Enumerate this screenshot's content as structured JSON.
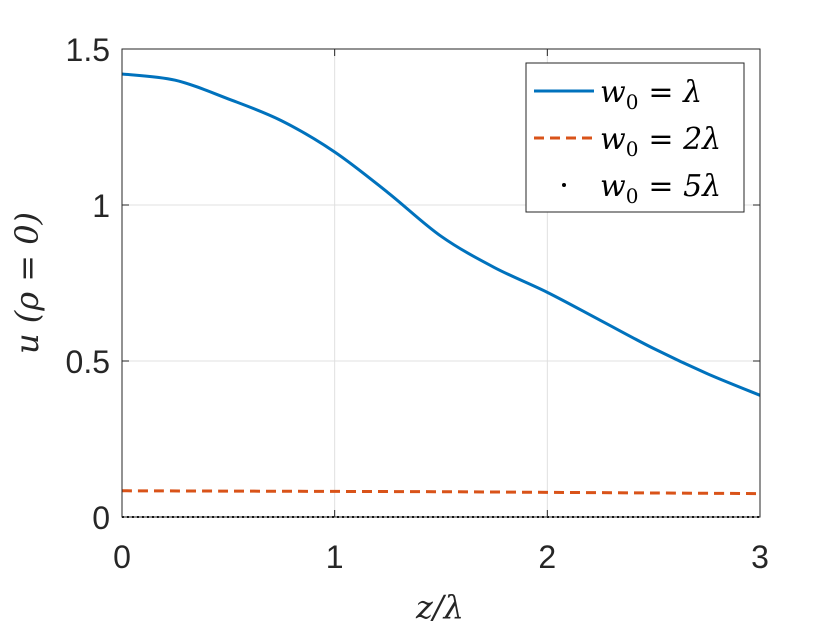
{
  "chart_data": {
    "type": "line",
    "xlabel": "z/λ",
    "ylabel": "u (ρ = 0)",
    "xlim": [
      0,
      3
    ],
    "ylim": [
      0,
      1.5
    ],
    "grid": true,
    "legend_placement": "top-right",
    "x_ticks": [
      "0",
      "1",
      "2",
      "3"
    ],
    "y_ticks": [
      "0",
      "0.5",
      "1",
      "1.5"
    ],
    "series": [
      {
        "name": "w0 = λ",
        "name_parts": {
          "base": "w",
          "sub": "0",
          "rhs": "= λ"
        },
        "style": "solid",
        "color": "#0072BD",
        "x": [
          0,
          0.25,
          0.5,
          0.75,
          1.0,
          1.25,
          1.5,
          1.75,
          2.0,
          2.25,
          2.5,
          2.75,
          3.0
        ],
        "y": [
          1.42,
          1.4,
          1.34,
          1.27,
          1.17,
          1.04,
          0.9,
          0.8,
          0.72,
          0.63,
          0.54,
          0.46,
          0.39
        ]
      },
      {
        "name": "w0 = 2λ",
        "name_parts": {
          "base": "w",
          "sub": "0",
          "rhs": "= 2λ"
        },
        "style": "dashed",
        "color": "#D95319",
        "x": [
          0,
          0.5,
          1.0,
          1.5,
          2.0,
          2.5,
          3.0
        ],
        "y": [
          0.084,
          0.083,
          0.082,
          0.081,
          0.079,
          0.077,
          0.075
        ]
      },
      {
        "name": "w0 = 5λ",
        "name_parts": {
          "base": "w",
          "sub": "0",
          "rhs": "= 5λ"
        },
        "style": "dotted",
        "color": "#000000",
        "x": [
          0,
          0.5,
          1.0,
          1.5,
          2.0,
          2.5,
          3.0
        ],
        "y": [
          0.0,
          0.0,
          0.0,
          0.0,
          0.0,
          0.0,
          0.0
        ]
      }
    ]
  }
}
